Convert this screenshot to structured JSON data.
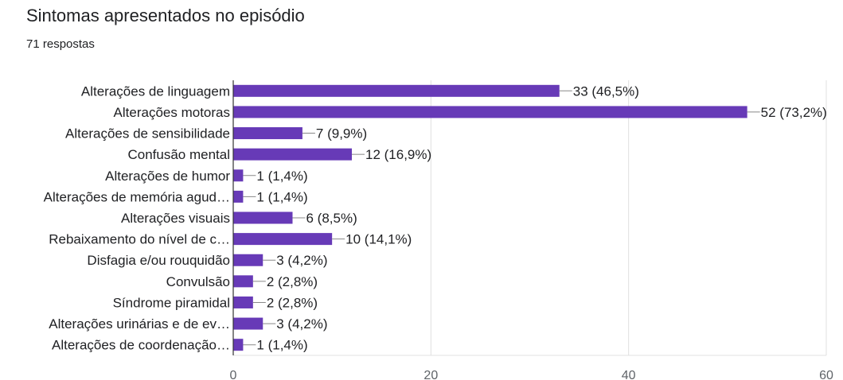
{
  "title": "Sintomas apresentados no episódio",
  "subtitle": "71 respostas",
  "colors": {
    "bar": "#673ab7",
    "grid": "#e0e0e0",
    "axis": "#333333",
    "leader": "#888888"
  },
  "chart_data": {
    "type": "bar",
    "orientation": "horizontal",
    "title": "Sintomas apresentados no episódio",
    "subtitle": "71 respostas",
    "categories": [
      "Alterações de linguagem",
      "Alterações motoras",
      "Alterações de sensibilidade",
      "Confusão mental",
      "Alterações de humor",
      "Alterações de memória agud…",
      "Alterações visuais",
      "Rebaixamento do nível de c…",
      "Disfagia e/ou rouquidão",
      "Convulsão",
      "Síndrome piramidal",
      "Alterações urinárias e de ev…",
      "Alterações de coordenação…"
    ],
    "values": [
      33,
      52,
      7,
      12,
      1,
      1,
      6,
      10,
      3,
      2,
      2,
      3,
      1
    ],
    "value_labels": [
      "33 (46,5%)",
      "52 (73,2%)",
      "7 (9,9%)",
      "12 (16,9%)",
      "1 (1,4%)",
      "1 (1,4%)",
      "6 (8,5%)",
      "10 (14,1%)",
      "3 (4,2%)",
      "2 (2,8%)",
      "2 (2,8%)",
      "3 (4,2%)",
      "1 (1,4%)"
    ],
    "xlim": [
      0,
      60
    ],
    "xticks": [
      0,
      20,
      40,
      60
    ],
    "xtick_labels": [
      "0",
      "20",
      "40",
      "60"
    ],
    "grid": true
  }
}
